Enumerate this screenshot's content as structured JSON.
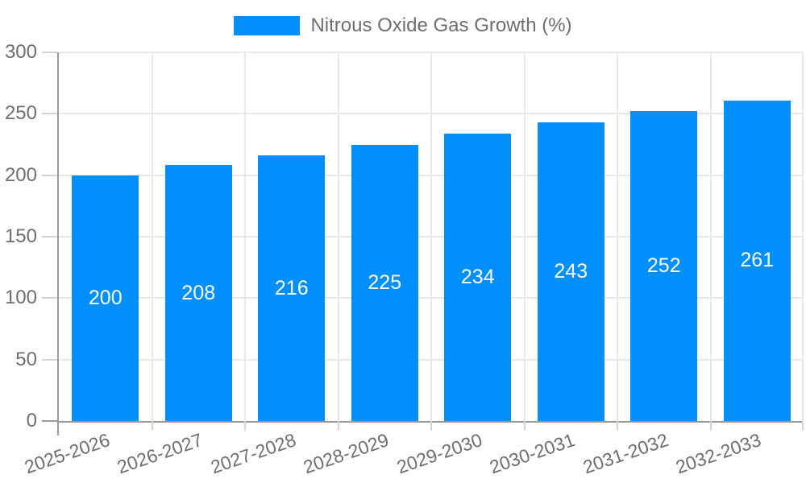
{
  "chart_data": {
    "type": "bar",
    "title": "",
    "legend_label": "Nitrous Oxide Gas Growth (%)",
    "legend_position": "top-center",
    "categories": [
      "2025-2026",
      "2026-2027",
      "2027-2028",
      "2028-2029",
      "2029-2030",
      "2030-2031",
      "2031-2032",
      "2032-2033"
    ],
    "series": [
      {
        "name": "Nitrous Oxide Gas Growth (%)",
        "values": [
          200,
          208,
          216,
          225,
          234,
          243,
          252,
          261
        ]
      }
    ],
    "value_labels": [
      "200",
      "208",
      "216",
      "225",
      "234",
      "243",
      "252",
      "261"
    ],
    "xlabel": "",
    "ylabel": "",
    "ylim": [
      0,
      300
    ],
    "yticks": [
      0,
      50,
      100,
      150,
      200,
      250,
      300
    ],
    "grid": "both",
    "x_label_rotation_deg": -19,
    "colors": {
      "bar": "#008FFB",
      "bar_value_label": "#FFFFFF",
      "axis_line": "#9A9A9A",
      "gridline": "#E8E8E8",
      "tick": "#D4D4D4",
      "axis_label_text": "#6E6E6E",
      "legend_text": "#6E6E6E",
      "background": "#FFFFFF"
    }
  }
}
